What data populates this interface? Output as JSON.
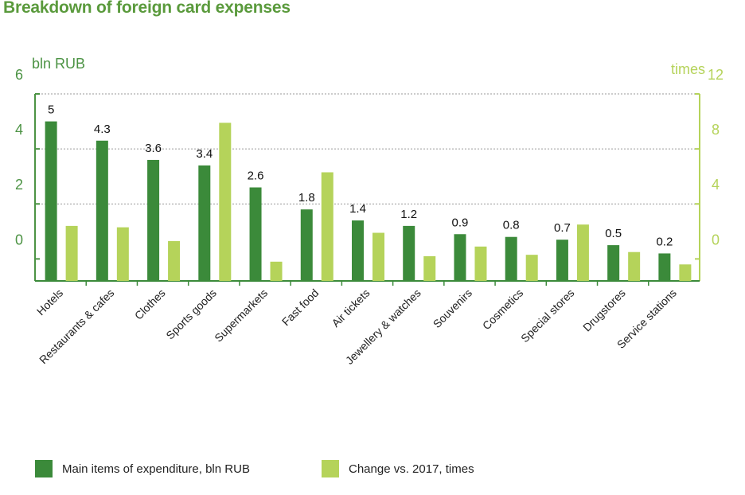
{
  "chart_data": {
    "type": "bar",
    "title": "Breakdown of foreign card expenses",
    "categories": [
      "Hotels",
      "Restaurants & cafes",
      "Clothes",
      "Sports goods",
      "Supermarkets",
      "Fast food",
      "Air tickets",
      "Jewellery & watches",
      "Souvenirs",
      "Cosmetics",
      "Special stores",
      "Drugstores",
      "Service stations"
    ],
    "series": [
      {
        "name": "Main items of expenditure, bln RUB",
        "axis": "left",
        "values": [
          5,
          4.3,
          3.6,
          3.4,
          2.6,
          1.8,
          1.4,
          1.2,
          0.9,
          0.8,
          0.7,
          0.5,
          0.2
        ],
        "labels": [
          "5",
          "4.3",
          "3.6",
          "3.4",
          "2.6",
          "1.8",
          "1.4",
          "1.2",
          "0.9",
          "0.8",
          "0.7",
          "0.5",
          "0.2"
        ],
        "color": "#3b8a3a"
      },
      {
        "name": "Change vs. 2017, times",
        "axis": "right",
        "values": [
          2.4,
          2.3,
          1.3,
          9.9,
          -0.2,
          6.3,
          1.9,
          0.2,
          0.9,
          0.3,
          2.5,
          0.5,
          -0.4
        ],
        "color": "#b5d35a"
      }
    ],
    "y_left": {
      "label": "bln RUB",
      "ticks": [
        0,
        2,
        4,
        6
      ],
      "range": [
        -0.8,
        6
      ],
      "color": "#4c9344"
    },
    "y_right": {
      "label": "times",
      "ticks": [
        0,
        4,
        8,
        12
      ],
      "range": [
        -1.6,
        12
      ],
      "color": "#b5d35a"
    },
    "grid": "dotted horizontal",
    "legend_position": "bottom"
  }
}
